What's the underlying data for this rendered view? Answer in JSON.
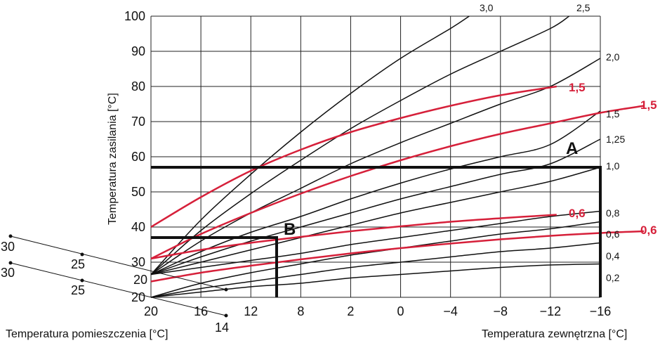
{
  "chart_data": {
    "type": "line",
    "ylabel": "Temperatura zasilania  [°C]",
    "xlabel": "Temperatura zewnętrzna  [°C]",
    "room_axis_label": "Temperatura pomieszczenia  [°C]",
    "y_ticks": [
      "100",
      "90",
      "80",
      "70",
      "60",
      "50",
      "40",
      "30",
      "20"
    ],
    "x_ticks": [
      "20",
      "16",
      "12",
      "8",
      "2",
      "0",
      "−4",
      "−8",
      "−12",
      "−16"
    ],
    "room_labels_upper": [
      "30",
      "25",
      "20"
    ],
    "room_labels_lower": [
      "30",
      "25",
      "20",
      "14"
    ],
    "ylim": [
      20,
      100
    ],
    "xlim": [
      20,
      -16
    ],
    "grid": true,
    "colors": {
      "curve": "#111111",
      "red": "#d6203a",
      "frame": "#111111",
      "grid": "#222222"
    },
    "curve_labels": [
      "3,0",
      "2,5",
      "2,0",
      "1,5",
      "1,25",
      "1,0",
      "0,8",
      "0,6",
      "0,4",
      "0,2"
    ],
    "red_labels": [
      "1,5",
      "1,5",
      "0,6",
      "0,6"
    ],
    "markers": [
      "A",
      "B"
    ],
    "series": [
      {
        "name": "3,0",
        "x": [
          20,
          16,
          12,
          8,
          4,
          0,
          -4,
          -5.5
        ],
        "y": [
          26.5,
          42,
          55,
          67,
          78,
          88,
          96.5,
          100
        ]
      },
      {
        "name": "2,5",
        "x": [
          20,
          16,
          12,
          8,
          4,
          0,
          -4,
          -8,
          -12,
          -13.5
        ],
        "y": [
          26.5,
          39,
          49.5,
          59,
          68,
          76,
          83.5,
          90,
          96.5,
          100
        ]
      },
      {
        "name": "2,0",
        "x": [
          20,
          16,
          12,
          8,
          4,
          0,
          -4,
          -8,
          -12,
          -16
        ],
        "y": [
          26.5,
          36,
          44,
          51,
          58,
          64,
          69.5,
          75,
          80,
          88
        ]
      },
      {
        "name": "1,5",
        "x": [
          20,
          16,
          12,
          8,
          4,
          0,
          -4,
          -8,
          -12,
          -16
        ],
        "y": [
          26.5,
          33,
          38.5,
          43,
          48,
          52.5,
          56.5,
          60,
          63.5,
          73
        ]
      },
      {
        "name": "1,25",
        "x": [
          20,
          16,
          12,
          8,
          4,
          0,
          -4,
          -8,
          -12,
          -16
        ],
        "y": [
          26.5,
          31.5,
          36,
          40,
          44,
          48,
          51.5,
          55,
          58,
          65
        ]
      },
      {
        "name": "1,0",
        "x": [
          20,
          16,
          12,
          8,
          4,
          0,
          -4,
          -8,
          -12,
          -16
        ],
        "y": [
          26.5,
          30,
          33.5,
          37,
          40.5,
          44,
          47,
          50,
          53,
          57
        ]
      },
      {
        "name": "0,8",
        "x": [
          20,
          16,
          12,
          8,
          4,
          0,
          -4,
          -8,
          -12,
          -16
        ],
        "y": [
          26.5,
          28.5,
          30.5,
          32.5,
          35,
          37,
          39,
          41,
          43,
          44.5
        ]
      },
      {
        "name": "0,6",
        "x": [
          20,
          16,
          12,
          8,
          4,
          0,
          -4,
          -8,
          -12,
          -16
        ],
        "y": [
          20,
          24,
          27,
          29.5,
          32,
          34,
          36,
          38,
          39.5,
          41.5
        ]
      },
      {
        "name": "0,4",
        "x": [
          20,
          16,
          12,
          8,
          4,
          0,
          -4,
          -8,
          -12,
          -16
        ],
        "y": [
          20,
          22.5,
          24.5,
          26.5,
          28.5,
          30,
          31.5,
          33,
          34,
          35.5
        ]
      },
      {
        "name": "0,2",
        "x": [
          20,
          16,
          12,
          8,
          4,
          0,
          -4,
          -8,
          -12,
          -16
        ],
        "y": [
          20,
          21.5,
          23,
          24,
          25.5,
          26.5,
          27.5,
          28.5,
          29.2,
          29.5
        ]
      }
    ],
    "red_series": [
      {
        "name": "1,5",
        "x": [
          20,
          16,
          12,
          8,
          4,
          0,
          -4,
          -8,
          -12.5
        ],
        "y": [
          40,
          48.5,
          56,
          62,
          67,
          71,
          74.5,
          77.5,
          80
        ]
      },
      {
        "name": "1,5",
        "x": [
          20,
          16,
          12,
          8,
          4,
          0,
          -4,
          -8,
          -12,
          -16,
          -19.5
        ],
        "y": [
          31,
          38,
          44,
          49.5,
          54.5,
          59,
          63,
          66.5,
          69.5,
          72.5,
          74.5
        ]
      },
      {
        "name": "0,6",
        "x": [
          20,
          16,
          12,
          8,
          4,
          0,
          -4,
          -8,
          -12.5
        ],
        "y": [
          31,
          33.5,
          35.5,
          37.2,
          38.8,
          40.2,
          41.5,
          42.5,
          43.5
        ]
      },
      {
        "name": "0,6",
        "x": [
          20,
          16,
          12,
          8,
          4,
          0,
          -4,
          -8,
          -12,
          -16,
          -19.5
        ],
        "y": [
          24.5,
          27,
          29,
          30.8,
          32.5,
          34,
          35.3,
          36.5,
          37.5,
          38.3,
          38.8
        ]
      }
    ]
  }
}
